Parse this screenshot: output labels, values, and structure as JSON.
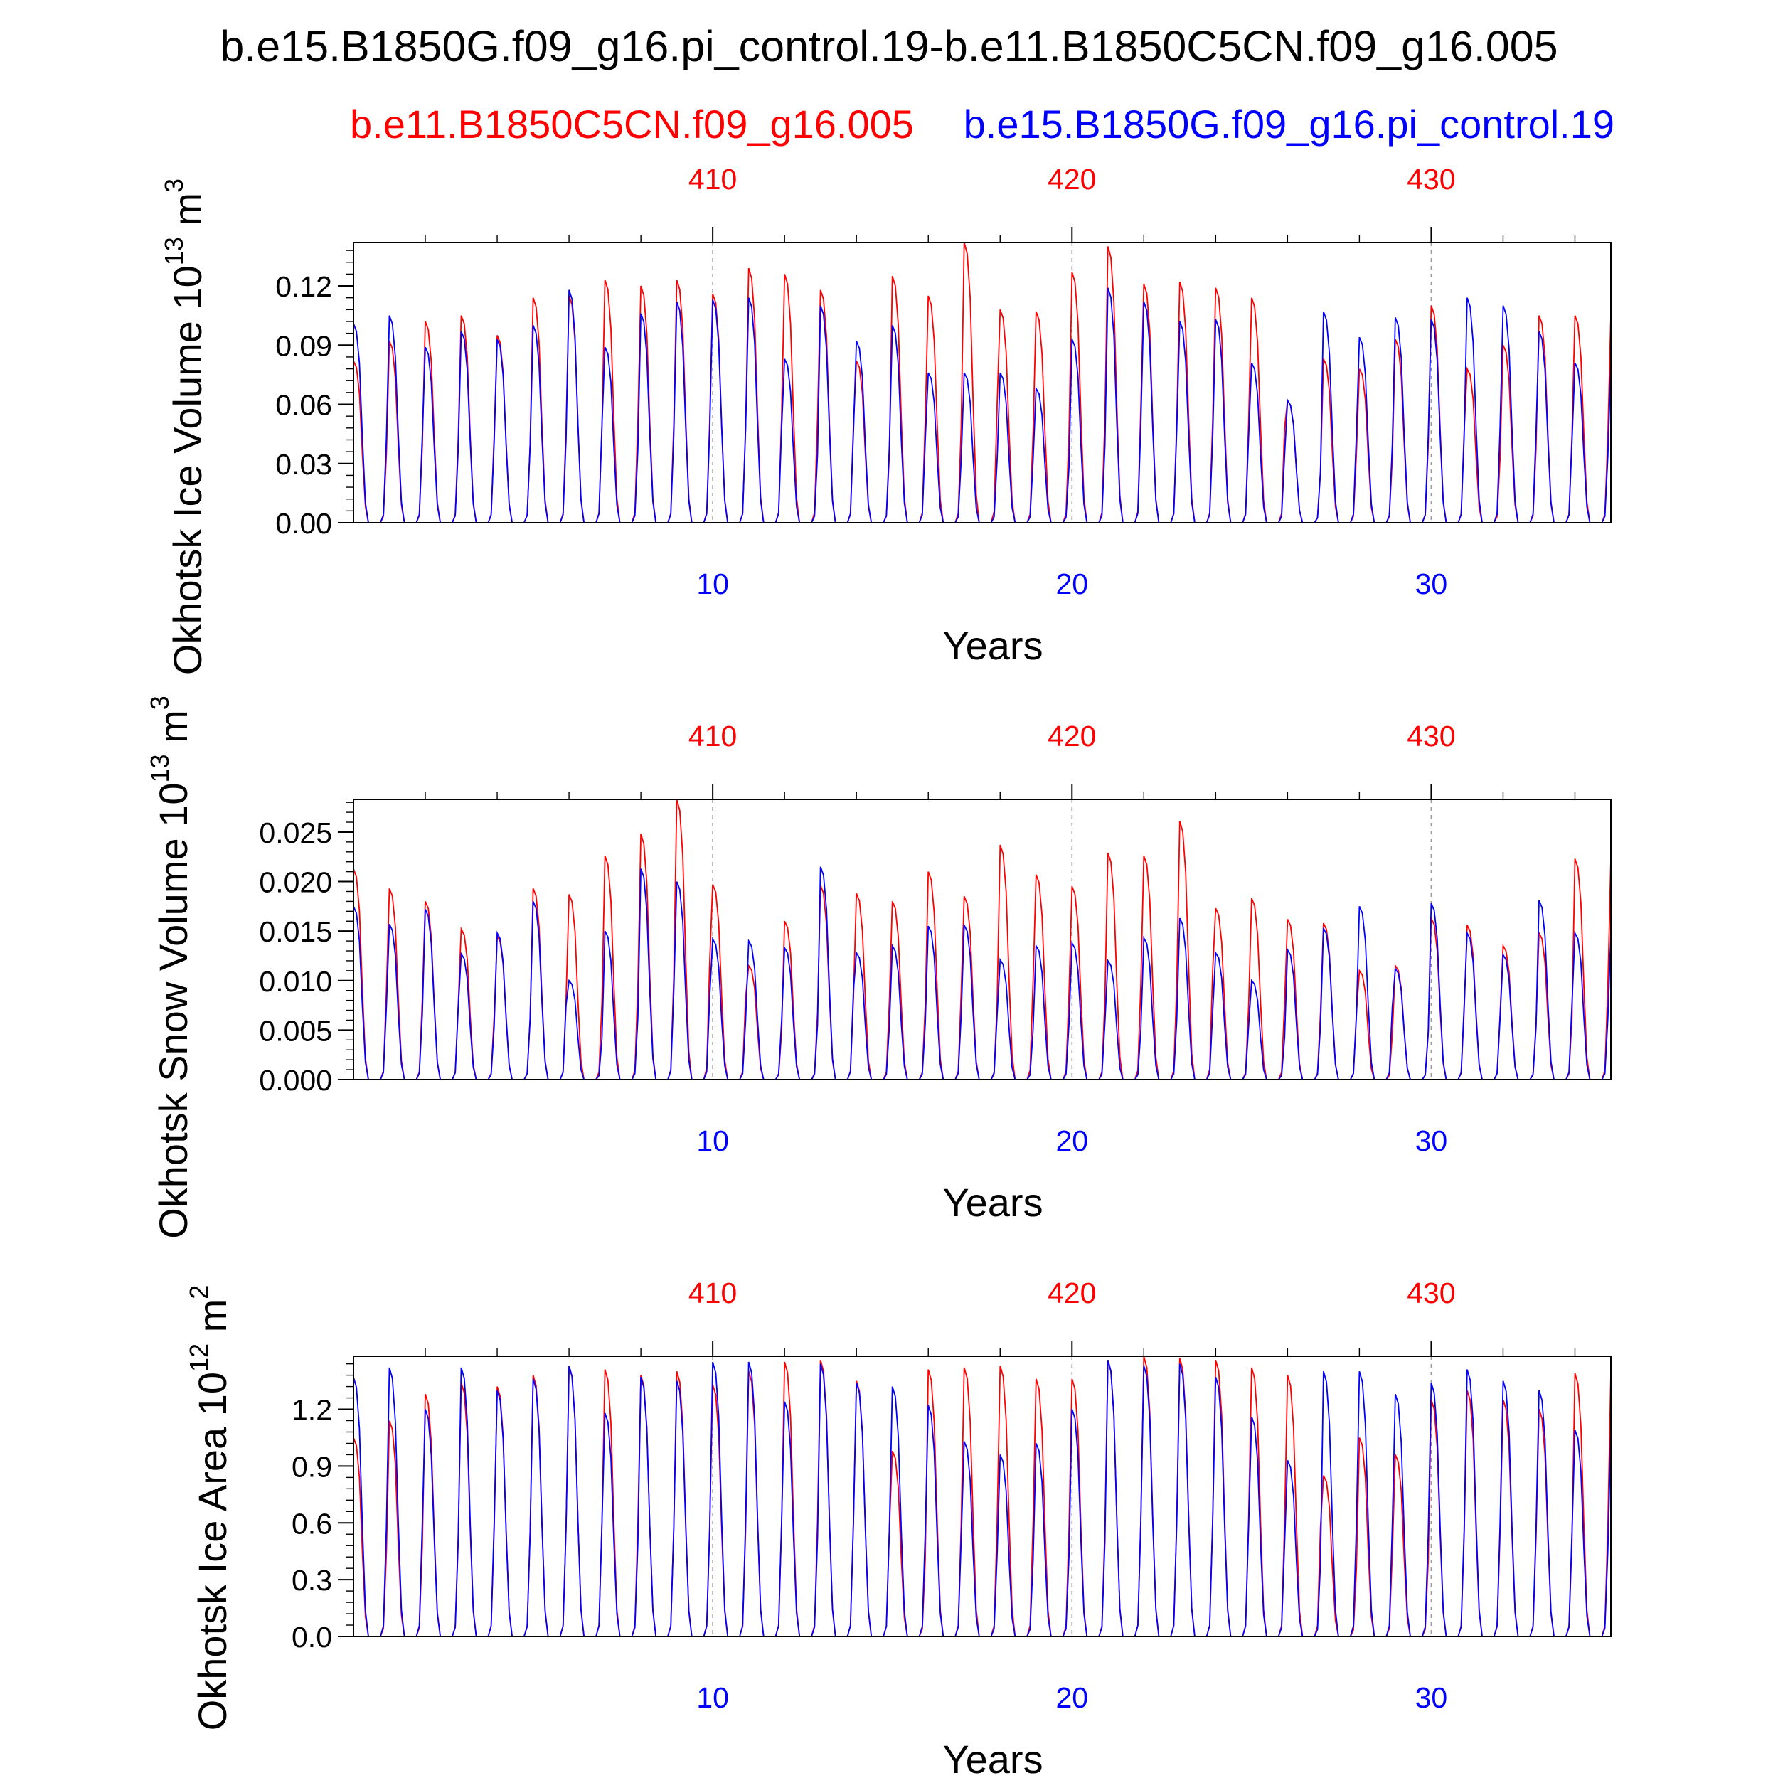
{
  "figure": {
    "title": "b.e15.B1850G.f09_g16.pi_control.19-b.e11.B1850C5CN.f09_g16.005",
    "legend_red": "b.e11.B1850C5CN.f09_g16.005",
    "legend_blue": "b.e15.B1850G.f09_g16.pi_control.19",
    "colors": {
      "red": "#ff0000",
      "blue": "#0000ff",
      "axis": "#000000",
      "gridline": "#9a9a9a"
    }
  },
  "chart_data": [
    {
      "type": "line",
      "ylabel_main": "Okhotsk Ice Volume 10",
      "ylabel_sup": "13",
      "ylabel_unit": " m",
      "ylabel_unit_sup": "3",
      "xlabel": "Years",
      "xlim": [
        0,
        35
      ],
      "ylim": [
        0,
        0.142
      ],
      "yticks": [
        "0.00",
        "0.03",
        "0.06",
        "0.09",
        "0.12"
      ],
      "top_ticks": [
        "410",
        "420",
        "430"
      ],
      "bottom_ticks": [
        "10",
        "20",
        "30"
      ],
      "vlines": [
        10,
        20,
        30
      ],
      "series": [
        {
          "name": "b.e11.B1850C5CN.f09_g16.005",
          "color": "red",
          "peaks": [
            0.082,
            0.092,
            0.102,
            0.105,
            0.095,
            0.114,
            0.115,
            0.123,
            0.12,
            0.123,
            0.116,
            0.129,
            0.126,
            0.118,
            0.082,
            0.125,
            0.115,
            0.142,
            0.108,
            0.107,
            0.127,
            0.14,
            0.121,
            0.122,
            0.119,
            0.114,
            0.062,
            0.083,
            0.078,
            0.093,
            0.11,
            0.078,
            0.09,
            0.105
          ]
        },
        {
          "name": "b.e15.B1850G.f09_g16.pi_control.19",
          "color": "blue",
          "peaks": [
            0.101,
            0.105,
            0.089,
            0.097,
            0.093,
            0.1,
            0.118,
            0.089,
            0.106,
            0.112,
            0.113,
            0.114,
            0.083,
            0.11,
            0.092,
            0.1,
            0.076,
            0.076,
            0.076,
            0.068,
            0.093,
            0.119,
            0.112,
            0.102,
            0.103,
            0.081,
            0.062,
            0.107,
            0.094,
            0.104,
            0.103,
            0.114,
            0.11,
            0.097,
            0.081
          ]
        }
      ]
    },
    {
      "type": "line",
      "ylabel_main": "Okhotsk Snow Volume 10",
      "ylabel_sup": "13",
      "ylabel_unit": " m",
      "ylabel_unit_sup": "3",
      "xlabel": "Years",
      "xlim": [
        0,
        35
      ],
      "ylim": [
        0,
        0.0283
      ],
      "yticks": [
        "0.000",
        "0.005",
        "0.010",
        "0.015",
        "0.020",
        "0.025"
      ],
      "top_ticks": [
        "410",
        "420",
        "430"
      ],
      "bottom_ticks": [
        "10",
        "20",
        "30"
      ],
      "vlines": [
        10,
        20,
        30
      ],
      "series": [
        {
          "name": "b.e11.B1850C5CN.f09_g16.005",
          "color": "red",
          "peaks": [
            0.0213,
            0.0193,
            0.018,
            0.0152,
            0.0145,
            0.0193,
            0.0187,
            0.0226,
            0.0248,
            0.0283,
            0.0197,
            0.0115,
            0.016,
            0.0196,
            0.0188,
            0.018,
            0.021,
            0.0185,
            0.0237,
            0.0207,
            0.0195,
            0.0229,
            0.0226,
            0.0261,
            0.0173,
            0.0183,
            0.0162,
            0.0158,
            0.011,
            0.0115,
            0.0163,
            0.0156,
            0.0135,
            0.0148,
            0.0223
          ]
        },
        {
          "name": "b.e15.B1850G.f09_g16.pi_control.19",
          "color": "blue",
          "peaks": [
            0.0175,
            0.0157,
            0.0172,
            0.0127,
            0.0148,
            0.018,
            0.01,
            0.015,
            0.0213,
            0.02,
            0.0142,
            0.014,
            0.0133,
            0.0215,
            0.0128,
            0.0135,
            0.0155,
            0.0156,
            0.0121,
            0.0135,
            0.0138,
            0.012,
            0.0143,
            0.0163,
            0.0128,
            0.01,
            0.0131,
            0.0153,
            0.0175,
            0.0112,
            0.0178,
            0.0148,
            0.0126,
            0.0181,
            0.0148
          ]
        }
      ]
    },
    {
      "type": "line",
      "ylabel_main": "Okhotsk Ice Area 10",
      "ylabel_sup": "12",
      "ylabel_unit": " m",
      "ylabel_unit_sup": "2",
      "xlabel": "Years",
      "xlim": [
        0,
        35
      ],
      "ylim": [
        0,
        1.48
      ],
      "yticks": [
        "0.0",
        "0.3",
        "0.6",
        "0.9",
        "1.2"
      ],
      "top_ticks": [
        "410",
        "420",
        "430"
      ],
      "bottom_ticks": [
        "10",
        "20",
        "30"
      ],
      "vlines": [
        10,
        20,
        30
      ],
      "series": [
        {
          "name": "b.e11.B1850C5CN.f09_g16.005",
          "color": "red",
          "peaks": [
            1.05,
            1.14,
            1.28,
            1.34,
            1.32,
            1.38,
            1.43,
            1.41,
            1.38,
            1.4,
            1.33,
            1.4,
            1.45,
            1.46,
            1.35,
            0.98,
            1.41,
            1.42,
            1.43,
            1.36,
            1.36,
            1.46,
            1.48,
            1.47,
            1.46,
            1.42,
            1.38,
            0.85,
            1.05,
            0.96,
            1.25,
            1.3,
            1.25,
            1.2,
            1.39
          ]
        },
        {
          "name": "b.e15.B1850G.f09_g16.pi_control.19",
          "color": "blue",
          "peaks": [
            1.37,
            1.42,
            1.2,
            1.42,
            1.3,
            1.36,
            1.43,
            1.18,
            1.37,
            1.35,
            1.45,
            1.45,
            1.24,
            1.44,
            1.34,
            1.32,
            1.22,
            1.03,
            0.96,
            1.02,
            1.2,
            1.46,
            1.43,
            1.44,
            1.37,
            1.16,
            0.93,
            1.4,
            1.4,
            1.28,
            1.34,
            1.41,
            1.35,
            1.3,
            1.09
          ]
        }
      ]
    }
  ]
}
